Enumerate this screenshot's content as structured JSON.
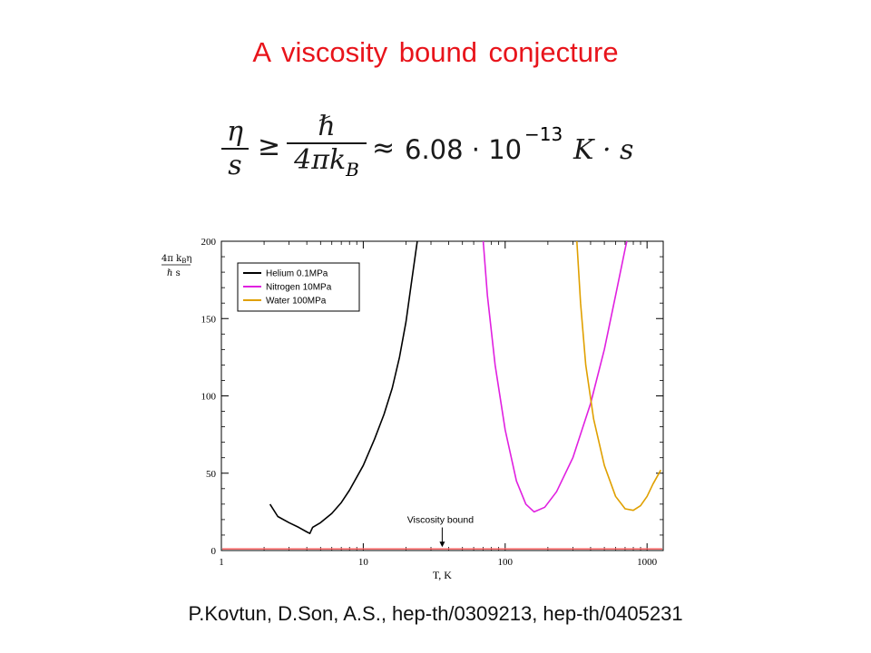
{
  "slide": {
    "title": "A viscosity bound conjecture",
    "credit": "P.Kovtun, D.Son, A.S., hep-th/0309213, hep-th/0405231"
  },
  "formula": {
    "lhs_num": "η",
    "lhs_den": "s",
    "relation": "≥",
    "rhs_num": "ℏ",
    "rhs_den_prefix": "4πk",
    "rhs_den_sub": "B",
    "approx": "≈",
    "mantissa": "6.08 · 10",
    "exponent": "−13",
    "units": "K · s"
  },
  "chart_data": {
    "type": "line",
    "xscale": "log",
    "xlim": [
      1,
      1300
    ],
    "ylim": [
      0,
      200
    ],
    "xlabel": "T, K",
    "ylabel": {
      "numerator": "4π k",
      "numerator_sub": "B",
      "numerator_tail": "η",
      "denominator": "ℏ s"
    },
    "xticks": [
      1,
      10,
      100,
      1000
    ],
    "xtick_labels": [
      "1",
      "10",
      "100",
      "1000"
    ],
    "yticks": [
      0,
      50,
      100,
      150,
      200
    ],
    "ytick_labels": [
      "0",
      "50",
      "100",
      "150",
      "200"
    ],
    "grid": false,
    "legend": "top-left",
    "series": [
      {
        "name": "Helium 0.1MPa",
        "color": "#000000",
        "points": [
          [
            2.2,
            30
          ],
          [
            2.5,
            22
          ],
          [
            3,
            18
          ],
          [
            3.5,
            15
          ],
          [
            4,
            12
          ],
          [
            4.2,
            11
          ],
          [
            4.4,
            15
          ],
          [
            5,
            18
          ],
          [
            6,
            24
          ],
          [
            7,
            31
          ],
          [
            8,
            39
          ],
          [
            10,
            55
          ],
          [
            12,
            72
          ],
          [
            14,
            88
          ],
          [
            16,
            105
          ],
          [
            18,
            125
          ],
          [
            20,
            148
          ],
          [
            22,
            175
          ],
          [
            24,
            200
          ]
        ]
      },
      {
        "name": "Nitrogen 10MPa",
        "color": "#e020e0",
        "points": [
          [
            70,
            200
          ],
          [
            75,
            165
          ],
          [
            85,
            120
          ],
          [
            100,
            78
          ],
          [
            120,
            45
          ],
          [
            140,
            30
          ],
          [
            160,
            25
          ],
          [
            190,
            28
          ],
          [
            230,
            38
          ],
          [
            300,
            60
          ],
          [
            400,
            95
          ],
          [
            500,
            130
          ],
          [
            600,
            165
          ],
          [
            700,
            195
          ],
          [
            720,
            200
          ]
        ]
      },
      {
        "name": "Water 100MPa",
        "color": "#e0a000",
        "points": [
          [
            320,
            200
          ],
          [
            340,
            160
          ],
          [
            370,
            120
          ],
          [
            420,
            85
          ],
          [
            500,
            55
          ],
          [
            600,
            35
          ],
          [
            700,
            27
          ],
          [
            800,
            26
          ],
          [
            900,
            29
          ],
          [
            1000,
            35
          ],
          [
            1100,
            43
          ],
          [
            1250,
            52
          ]
        ]
      }
    ],
    "bound_line": {
      "value": 1,
      "color": "#ff6060"
    },
    "annotation": {
      "text": "Viscosity bound",
      "arrow_x": 36,
      "arrow_from_y": 12,
      "arrow_to_y": 1
    }
  }
}
